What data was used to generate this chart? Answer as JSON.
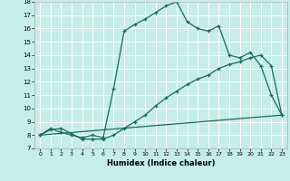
{
  "xlabel": "Humidex (Indice chaleur)",
  "xlim": [
    -0.5,
    23.5
  ],
  "ylim": [
    7,
    18
  ],
  "yticks": [
    7,
    8,
    9,
    10,
    11,
    12,
    13,
    14,
    15,
    16,
    17,
    18
  ],
  "xticks": [
    0,
    1,
    2,
    3,
    4,
    5,
    6,
    7,
    8,
    9,
    10,
    11,
    12,
    13,
    14,
    15,
    16,
    17,
    18,
    19,
    20,
    21,
    22,
    23
  ],
  "bg_color": "#c6ede8",
  "grid_color": "#b0ddd8",
  "line_color": "#1a6b5a",
  "line1_x": [
    0,
    1,
    2,
    3,
    4,
    5,
    6,
    7,
    8,
    9,
    10,
    11,
    12,
    13,
    14,
    15,
    16,
    17,
    18,
    19,
    20,
    21,
    22,
    23
  ],
  "line1_y": [
    8.0,
    8.5,
    8.2,
    8.0,
    7.8,
    8.0,
    7.8,
    11.5,
    15.8,
    16.3,
    16.7,
    17.2,
    17.7,
    18.0,
    16.5,
    16.0,
    15.8,
    16.2,
    14.0,
    13.8,
    14.2,
    13.2,
    11.0,
    9.5
  ],
  "line2_x": [
    0,
    1,
    2,
    3,
    4,
    5,
    6,
    7,
    8,
    9,
    10,
    11,
    12,
    13,
    14,
    15,
    16,
    17,
    18,
    19,
    20,
    21,
    22,
    23
  ],
  "line2_y": [
    8.0,
    8.4,
    8.5,
    8.1,
    7.7,
    7.7,
    7.7,
    8.0,
    8.5,
    9.0,
    9.5,
    10.2,
    10.8,
    11.3,
    11.8,
    12.2,
    12.5,
    13.0,
    13.3,
    13.5,
    13.8,
    14.0,
    13.2,
    9.5
  ],
  "line3_x": [
    0,
    23
  ],
  "line3_y": [
    8.0,
    9.5
  ]
}
